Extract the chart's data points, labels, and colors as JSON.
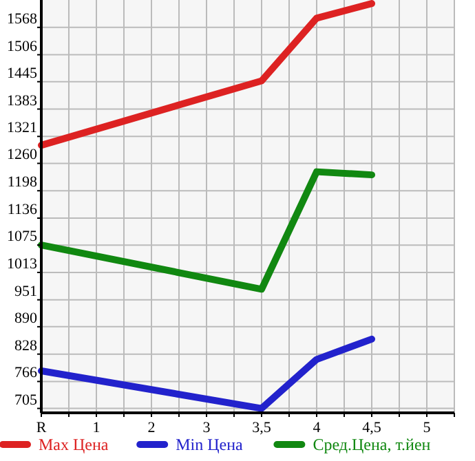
{
  "chart_data": {
    "type": "line",
    "categories": [
      "R",
      "1",
      "2",
      "3",
      "3,5",
      "4",
      "4,5",
      "5"
    ],
    "ylim": [
      695,
      1630
    ],
    "yticks": [
      705,
      766,
      828,
      890,
      951,
      1013,
      1075,
      1136,
      1198,
      1260,
      1321,
      1383,
      1445,
      1506,
      1568
    ],
    "grid": true,
    "legend": "bottom",
    "marker": "none",
    "line_style": "solid",
    "series": [
      {
        "name": "Max Цена",
        "color": "#dd2222",
        "values": [
          1301,
          null,
          null,
          null,
          1447,
          1589,
          1622,
          null
        ]
      },
      {
        "name": "Min Цена",
        "color": "#2222cc",
        "values": [
          790,
          null,
          null,
          null,
          705,
          816,
          862,
          null
        ]
      },
      {
        "name": "Сред.Цена, т.йен",
        "color": "#118811",
        "values": [
          1075,
          null,
          null,
          null,
          975,
          1241,
          1234,
          null
        ]
      }
    ]
  }
}
